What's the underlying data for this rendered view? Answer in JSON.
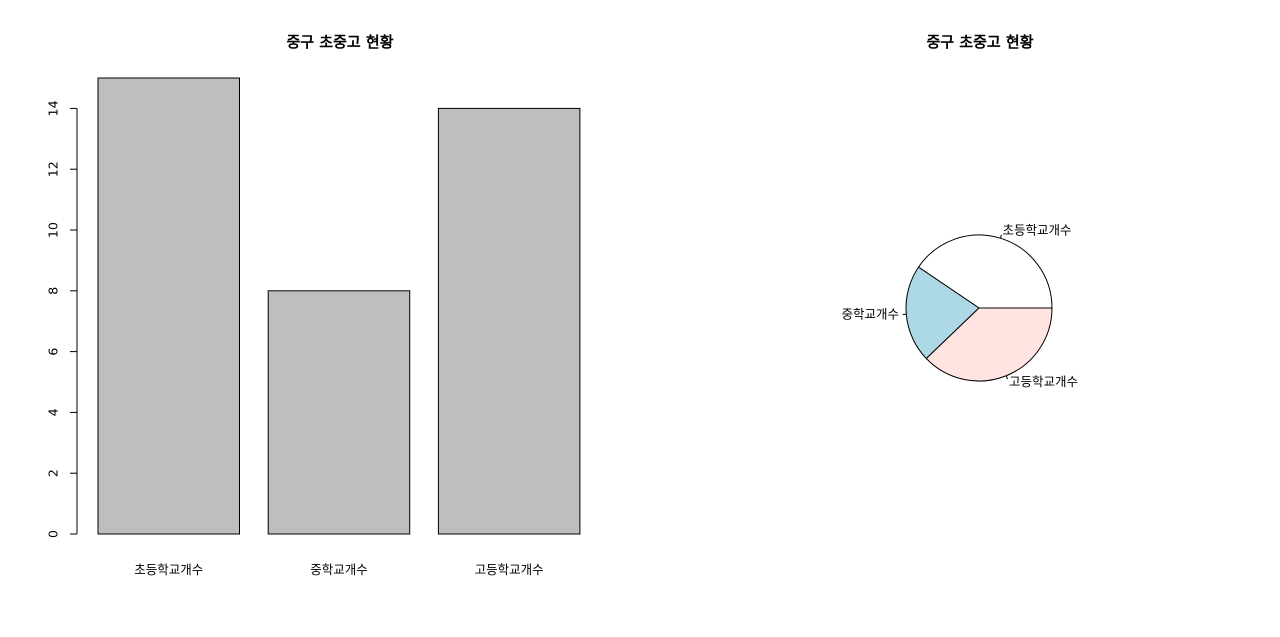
{
  "chart_data": [
    {
      "type": "bar",
      "title": "중구 초중고 현황",
      "categories": [
        "초등학교개수",
        "중학교개수",
        "고등학교개수"
      ],
      "values": [
        15,
        8,
        14
      ],
      "ylim": [
        0,
        15
      ],
      "yticks": [
        0,
        2,
        4,
        6,
        8,
        10,
        12,
        14
      ],
      "xlabel": "",
      "ylabel": "",
      "bar_color": "#bebebe",
      "grid": false
    },
    {
      "type": "pie",
      "title": "중구 초중고 현황",
      "labels": [
        "초등학교개수",
        "중학교개수",
        "고등학교개수"
      ],
      "values": [
        15,
        8,
        14
      ],
      "colors": [
        "#ffffff",
        "#add8e6",
        "#ffe4e1"
      ],
      "grid": false
    }
  ]
}
